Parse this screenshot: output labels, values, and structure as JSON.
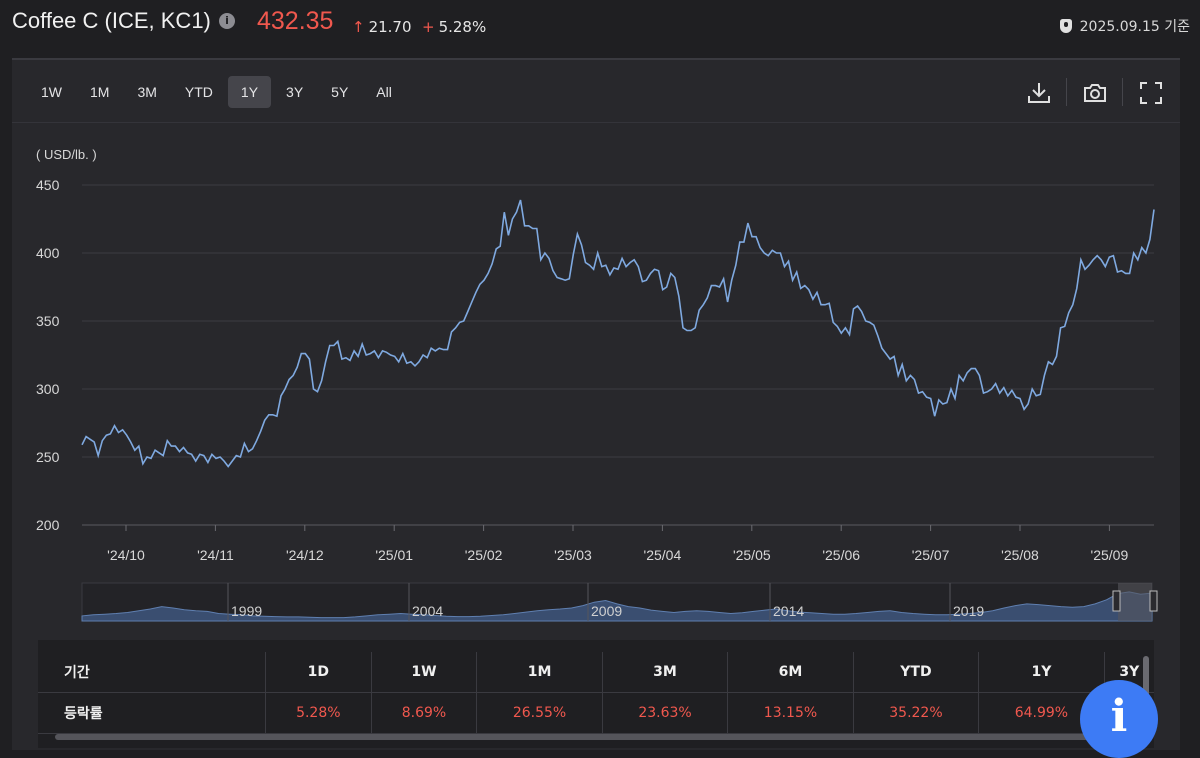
{
  "header": {
    "title": "Coffee C (ICE, KC1)",
    "price": "432.35",
    "change": "21.70",
    "change_pct": "5.28%",
    "as_of": "2025.09.15 기준",
    "price_color": "#f0584e"
  },
  "toolbar": {
    "tabs": [
      "1W",
      "1M",
      "3M",
      "YTD",
      "1Y",
      "3Y",
      "5Y",
      "All"
    ],
    "active_tab": "1Y",
    "icons": [
      "download-icon",
      "camera-icon",
      "fullscreen-icon"
    ]
  },
  "navigator": {
    "years": [
      "1999",
      "2004",
      "2009",
      "2014",
      "2019"
    ]
  },
  "chart_data": {
    "type": "line",
    "unit_label": "( USD/lb. )",
    "ylim": [
      200,
      450
    ],
    "yticks": [
      200,
      250,
      300,
      350,
      400,
      450
    ],
    "x_tick_labels": [
      "'24/10",
      "'24/11",
      "'24/12",
      "'25/01",
      "'25/02",
      "'25/03",
      "'25/04",
      "'25/05",
      "'25/06",
      "'25/07",
      "'25/08",
      "'25/09"
    ],
    "grid": true,
    "line_color": "#7fa9e0",
    "series": [
      {
        "values": [
          259,
          265,
          263,
          261,
          251,
          262,
          266,
          267,
          273,
          268,
          270,
          266,
          261,
          255,
          258,
          245,
          250,
          249,
          255,
          253,
          251,
          262,
          258,
          258,
          254,
          257,
          253,
          252,
          247,
          252,
          251,
          246,
          252,
          249,
          250,
          247,
          243,
          247,
          251,
          250,
          260,
          254,
          256,
          262,
          269,
          277,
          281,
          281,
          280,
          295,
          300,
          307,
          310,
          316,
          326,
          326,
          322,
          300,
          298,
          306,
          320,
          332,
          332,
          335,
          322,
          323,
          321,
          328,
          324,
          333,
          325,
          326,
          328,
          323,
          328,
          327,
          325,
          324,
          320,
          326,
          319,
          320,
          317,
          320,
          325,
          323,
          330,
          328,
          330,
          329,
          329,
          342,
          345,
          349,
          350,
          357,
          364,
          371,
          377,
          380,
          385,
          392,
          403,
          405,
          430,
          413,
          425,
          430,
          439,
          420,
          420,
          418,
          418,
          395,
          400,
          396,
          387,
          382,
          381,
          380,
          381,
          399,
          414,
          406,
          393,
          391,
          388,
          400,
          390,
          391,
          384,
          389,
          388,
          396,
          390,
          393,
          395,
          390,
          379,
          380,
          385,
          388,
          387,
          373,
          375,
          385,
          382,
          368,
          345,
          343,
          343,
          345,
          358,
          362,
          367,
          376,
          376,
          375,
          381,
          364,
          380,
          391,
          408,
          408,
          422,
          412,
          412,
          404,
          400,
          398,
          402,
          400,
          400,
          390,
          394,
          380,
          386,
          374,
          376,
          373,
          366,
          371,
          362,
          362,
          363,
          349,
          346,
          341,
          345,
          340,
          359,
          361,
          357,
          350,
          349,
          347,
          339,
          330,
          326,
          322,
          324,
          310,
          318,
          306,
          310,
          307,
          297,
          298,
          294,
          293,
          280,
          292,
          289,
          290,
          300,
          293,
          310,
          306,
          312,
          315,
          315,
          310,
          297,
          298,
          300,
          304,
          297,
          301,
          295,
          299,
          294,
          293,
          285,
          289,
          300,
          295,
          296,
          310,
          320,
          318,
          324,
          345,
          346,
          356,
          362,
          374,
          395,
          388,
          391,
          395,
          398,
          395,
          390,
          397,
          398,
          386,
          387,
          385,
          385,
          400,
          395,
          404,
          400,
          410,
          432
        ]
      }
    ],
    "navigator_values": [
      0.15,
      0.18,
      0.2,
      0.22,
      0.25,
      0.3,
      0.35,
      0.42,
      0.38,
      0.33,
      0.3,
      0.28,
      0.22,
      0.2,
      0.18,
      0.15,
      0.14,
      0.13,
      0.12,
      0.12,
      0.11,
      0.1,
      0.1,
      0.1,
      0.12,
      0.15,
      0.18,
      0.2,
      0.22,
      0.2,
      0.18,
      0.16,
      0.14,
      0.13,
      0.13,
      0.14,
      0.16,
      0.18,
      0.22,
      0.26,
      0.3,
      0.33,
      0.35,
      0.38,
      0.45,
      0.55,
      0.6,
      0.5,
      0.42,
      0.38,
      0.32,
      0.28,
      0.25,
      0.28,
      0.3,
      0.28,
      0.25,
      0.22,
      0.24,
      0.28,
      0.32,
      0.35,
      0.3,
      0.26,
      0.24,
      0.22,
      0.2,
      0.2,
      0.22,
      0.25,
      0.28,
      0.3,
      0.25,
      0.22,
      0.2,
      0.18,
      0.18,
      0.2,
      0.22,
      0.25,
      0.3,
      0.38,
      0.45,
      0.5,
      0.48,
      0.45,
      0.42,
      0.4,
      0.42,
      0.5,
      0.62,
      0.8,
      0.85,
      0.78,
      0.82
    ]
  },
  "performance": {
    "period_label": "기간",
    "rate_label": "등락률",
    "periods": [
      "1D",
      "1W",
      "1M",
      "3M",
      "6M",
      "YTD",
      "1Y",
      "3Y"
    ],
    "values": [
      "5.28%",
      "8.69%",
      "26.55%",
      "23.63%",
      "13.15%",
      "35.22%",
      "64.99%",
      ""
    ],
    "value_color": "#f0584e"
  },
  "fab": {
    "label": "i"
  }
}
